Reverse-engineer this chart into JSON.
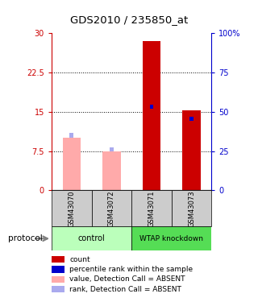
{
  "title": "GDS2010 / 235850_at",
  "samples": [
    "GSM43070",
    "GSM43072",
    "GSM43071",
    "GSM43073"
  ],
  "value_bars": [
    10.0,
    7.5,
    28.5,
    15.3
  ],
  "rank_markers": [
    10.5,
    7.8,
    16.0,
    13.7
  ],
  "absent_mask": [
    true,
    true,
    false,
    false
  ],
  "value_color_present": "#cc0000",
  "value_color_absent": "#ffaaaa",
  "rank_color_present": "#0000cc",
  "rank_color_absent": "#aaaaee",
  "ylim_left": [
    0,
    30
  ],
  "yticks_left": [
    0,
    7.5,
    15,
    22.5,
    30
  ],
  "ytick_labels_left": [
    "0",
    "7.5",
    "15",
    "22.5",
    "30"
  ],
  "yticks_right": [
    0,
    25,
    50,
    75,
    100
  ],
  "ytick_labels_right": [
    "0",
    "25",
    "50",
    "75",
    "100%"
  ],
  "protocol_labels": [
    "control",
    "WTAP knockdown"
  ],
  "protocol_color_light": "#bbffbb",
  "protocol_color_medium": "#55dd55",
  "protocol_label": "protocol",
  "legend_items": [
    {
      "label": "count",
      "color": "#cc0000"
    },
    {
      "label": "percentile rank within the sample",
      "color": "#0000cc"
    },
    {
      "label": "value, Detection Call = ABSENT",
      "color": "#ffaaaa"
    },
    {
      "label": "rank, Detection Call = ABSENT",
      "color": "#aaaaee"
    }
  ],
  "xlabel_gray_bg": "#cccccc"
}
